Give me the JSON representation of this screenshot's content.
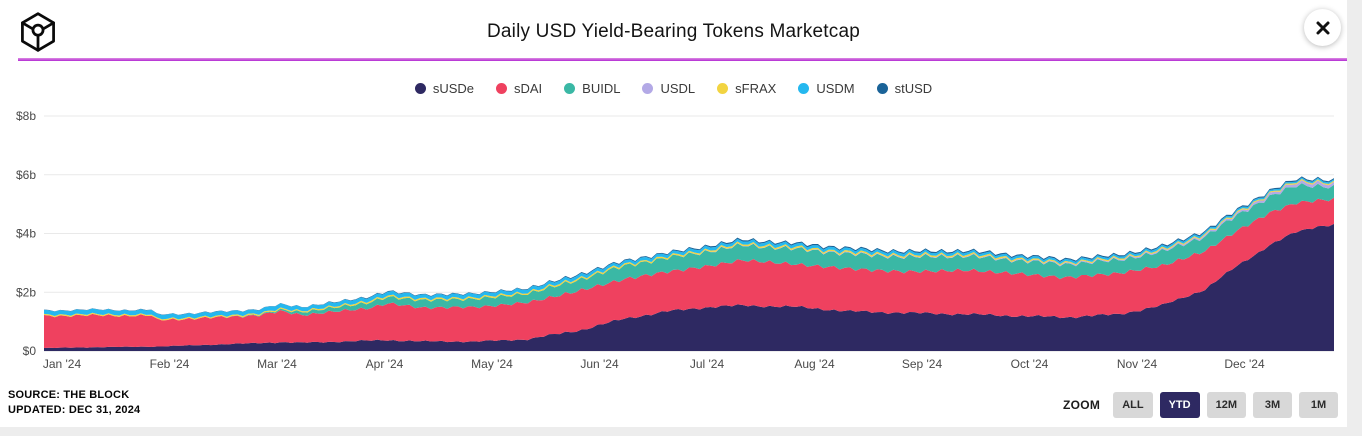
{
  "colors": {
    "page_background": "#ededed",
    "card_background": "#ffffff",
    "brand_accent_line": "#b32bd4",
    "active_button": "#2e2962",
    "gridline": "#e9e9e9"
  },
  "header": {
    "title": "Daily USD Yield-Bearing Tokens Marketcap",
    "logo_icon": "the-block-logo",
    "close_icon": "close-icon"
  },
  "chart_data": {
    "type": "area",
    "stacked": true,
    "title": "Daily USD Yield-Bearing Tokens Marketcap",
    "legend_position": "top",
    "grid": "horizontal",
    "x_unit": "months since Jan 1 2024",
    "xlim": [
      0,
      12
    ],
    "ylim": [
      0,
      8
    ],
    "y_ticks": [
      {
        "value": 0,
        "label": "$0"
      },
      {
        "value": 2,
        "label": "$2b"
      },
      {
        "value": 4,
        "label": "$4b"
      },
      {
        "value": 6,
        "label": "$6b"
      },
      {
        "value": 8,
        "label": "$8b"
      }
    ],
    "x_tick_labels": [
      "Jan '24",
      "Feb '24",
      "Mar '24",
      "Apr '24",
      "May '24",
      "Jun '24",
      "Jul '24",
      "Aug '24",
      "Sep '24",
      "Oct '24",
      "Nov '24",
      "Dec '24"
    ],
    "x": [
      0,
      0.5,
      1.0,
      1.05,
      1.6,
      2.0,
      2.2,
      2.4,
      3.0,
      3.2,
      3.5,
      4.0,
      4.5,
      5.0,
      5.4,
      5.8,
      6.2,
      6.5,
      7.0,
      7.5,
      8.0,
      8.6,
      9.0,
      9.5,
      10.0,
      10.4,
      10.8,
      11.1,
      11.4,
      11.65,
      11.85,
      12.0
    ],
    "series": [
      {
        "name": "sUSDe",
        "color": "#2e2962",
        "values": [
          0.1,
          0.13,
          0.15,
          0.15,
          0.22,
          0.27,
          0.3,
          0.28,
          0.35,
          0.37,
          0.33,
          0.32,
          0.4,
          0.72,
          1.1,
          1.35,
          1.5,
          1.55,
          1.5,
          1.35,
          1.3,
          1.25,
          1.2,
          1.15,
          1.25,
          1.55,
          2.1,
          2.9,
          3.6,
          4.05,
          4.25,
          4.3
        ]
      },
      {
        "name": "sDAI",
        "color": "#ef415f",
        "values": [
          1.1,
          1.08,
          1.05,
          0.9,
          0.92,
          0.95,
          1.05,
          0.95,
          1.1,
          1.25,
          1.15,
          1.17,
          1.25,
          1.35,
          1.35,
          1.35,
          1.4,
          1.55,
          1.45,
          1.45,
          1.4,
          1.5,
          1.45,
          1.35,
          1.4,
          1.35,
          1.3,
          1.2,
          1.1,
          1.0,
          0.88,
          0.86
        ]
      },
      {
        "name": "BUIDL",
        "color": "#3ab8a5",
        "values": [
          0,
          0,
          0,
          0,
          0,
          0.02,
          0.05,
          0.1,
          0.18,
          0.22,
          0.25,
          0.28,
          0.3,
          0.38,
          0.45,
          0.47,
          0.5,
          0.5,
          0.52,
          0.5,
          0.5,
          0.48,
          0.45,
          0.45,
          0.45,
          0.48,
          0.5,
          0.52,
          0.55,
          0.58,
          0.5,
          0.42
        ]
      },
      {
        "name": "USDL",
        "color": "#b3a9e6",
        "values": [
          0,
          0,
          0,
          0,
          0,
          0,
          0,
          0,
          0,
          0,
          0,
          0,
          0,
          0,
          0,
          0,
          0.01,
          0.01,
          0.01,
          0.02,
          0.02,
          0.02,
          0.02,
          0.03,
          0.03,
          0.04,
          0.05,
          0.06,
          0.08,
          0.1,
          0.11,
          0.1
        ]
      },
      {
        "name": "sFRAX",
        "color": "#f2d441",
        "values": [
          0.04,
          0.04,
          0.04,
          0.04,
          0.04,
          0.04,
          0.04,
          0.04,
          0.05,
          0.05,
          0.05,
          0.05,
          0.05,
          0.05,
          0.05,
          0.05,
          0.05,
          0.05,
          0.05,
          0.05,
          0.05,
          0.05,
          0.05,
          0.04,
          0.04,
          0.04,
          0.04,
          0.04,
          0.04,
          0.04,
          0.04,
          0.04
        ]
      },
      {
        "name": "USDM",
        "color": "#25b8ef",
        "values": [
          0.14,
          0.15,
          0.15,
          0.14,
          0.14,
          0.14,
          0.14,
          0.13,
          0.13,
          0.13,
          0.12,
          0.12,
          0.12,
          0.11,
          0.1,
          0.1,
          0.1,
          0.1,
          0.1,
          0.09,
          0.09,
          0.08,
          0.08,
          0.07,
          0.07,
          0.07,
          0.06,
          0.06,
          0.05,
          0.05,
          0.05,
          0.05
        ]
      },
      {
        "name": "stUSD",
        "color": "#1a6398",
        "values": [
          0.01,
          0.01,
          0.01,
          0.01,
          0.01,
          0.01,
          0.01,
          0.01,
          0.02,
          0.02,
          0.02,
          0.02,
          0.02,
          0.03,
          0.03,
          0.03,
          0.04,
          0.04,
          0.04,
          0.04,
          0.04,
          0.04,
          0.04,
          0.04,
          0.04,
          0.04,
          0.04,
          0.04,
          0.04,
          0.04,
          0.04,
          0.04
        ]
      }
    ]
  },
  "footer": {
    "source_line1": "SOURCE: THE BLOCK",
    "source_line2": "UPDATED: DEC 31, 2024",
    "zoom": {
      "label": "ZOOM",
      "buttons": [
        {
          "label": "ALL",
          "active": false
        },
        {
          "label": "YTD",
          "active": true
        },
        {
          "label": "12M",
          "active": false
        },
        {
          "label": "3M",
          "active": false
        },
        {
          "label": "1M",
          "active": false
        }
      ]
    }
  }
}
